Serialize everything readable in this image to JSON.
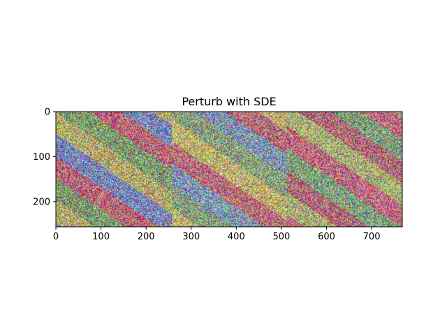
{
  "chart_data": {
    "type": "heatmap",
    "title": "Perturb with SDE",
    "xlabel": "",
    "ylabel": "",
    "xlim": [
      0,
      768
    ],
    "ylim": [
      256,
      0
    ],
    "x_ticks": [
      0,
      100,
      200,
      300,
      400,
      500,
      600,
      700
    ],
    "y_ticks": [
      0,
      100,
      200
    ],
    "panels": [
      {
        "x_range": [
          0,
          256
        ],
        "bands": [
          {
            "color": "#b4a86c",
            "note": "olive-yellow"
          },
          {
            "color": "#7a86b8",
            "note": "blue-violet"
          },
          {
            "color": "#b86878",
            "note": "pink-red"
          },
          {
            "color": "#7f9a6e",
            "note": "green"
          }
        ]
      },
      {
        "x_range": [
          256,
          512
        ],
        "bands": [
          {
            "color": "#8aa07c",
            "note": "green"
          },
          {
            "color": "#c0b070",
            "note": "yellow"
          },
          {
            "color": "#b86f7a",
            "note": "red"
          },
          {
            "color": "#7f94b0",
            "note": "blue"
          }
        ]
      },
      {
        "x_range": [
          512,
          768
        ],
        "bands": [
          {
            "color": "#b06c78",
            "note": "red"
          },
          {
            "color": "#a8ae74",
            "note": "yellow-green"
          },
          {
            "color": "#c06a80",
            "note": "pink-red"
          },
          {
            "color": "#80a07c",
            "note": "green"
          }
        ]
      }
    ],
    "grid": false
  }
}
